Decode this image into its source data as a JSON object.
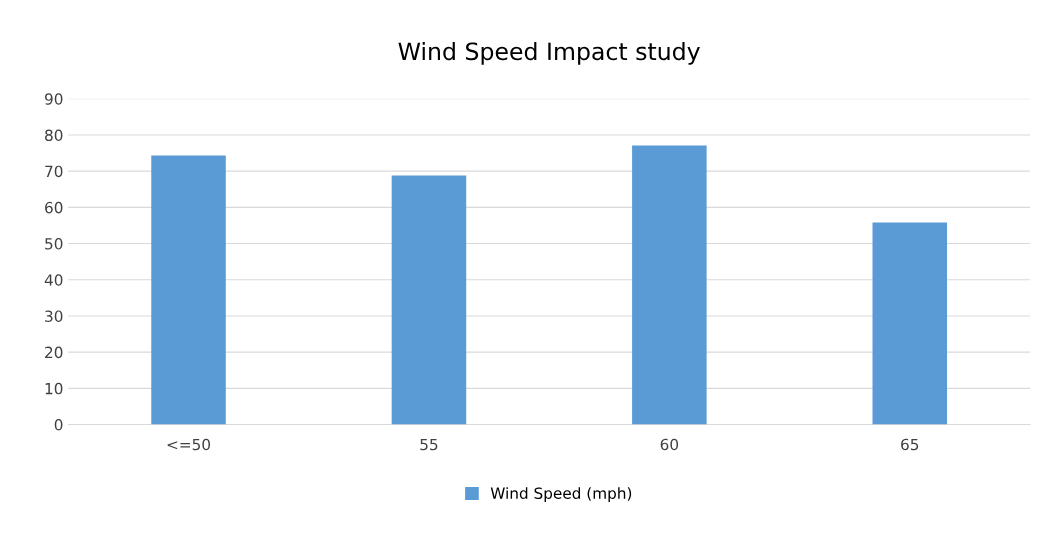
{
  "chart_data": {
    "type": "bar",
    "title": "Wind Speed Impact study",
    "categories": [
      "<=50",
      "55",
      "60",
      "65"
    ],
    "series": [
      {
        "name": "Wind Speed (mph)",
        "color": "#5b9bd5",
        "values": [
          74.3,
          68.8,
          77.1,
          55.8
        ]
      }
    ],
    "ylim": [
      0,
      90
    ],
    "yticks": [
      0,
      10,
      20,
      30,
      40,
      50,
      60,
      70,
      80,
      90
    ],
    "grid": "y",
    "legend": "bottom"
  }
}
